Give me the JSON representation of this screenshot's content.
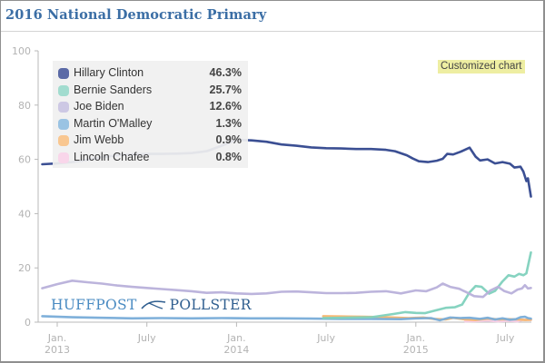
{
  "header": {
    "title": "2016 National Democratic Primary"
  },
  "badge": {
    "label": "Customized chart"
  },
  "branding": {
    "left": "HUFFPOST",
    "right": "POLLSTER",
    "logo_icon": "bird-logo-icon"
  },
  "colors": {
    "title": "#3b6ea5",
    "clinton": "#3b4f93",
    "sanders": "#7fd1bd",
    "biden": "#b8b0da",
    "omalley": "#78acd8",
    "webb": "#f7b56d",
    "chafee": "#f6cde6",
    "axis": "#b8b8b8",
    "badge_bg": "#eeeea2"
  },
  "legend": {
    "items": [
      {
        "name": "Hillary Clinton",
        "value": "46.3%",
        "color": "#5b6aa6"
      },
      {
        "name": "Bernie Sanders",
        "value": "25.7%",
        "color": "#a2dccf"
      },
      {
        "name": "Joe Biden",
        "value": "12.6%",
        "color": "#cdc8e4"
      },
      {
        "name": "Martin O'Malley",
        "value": "1.3%",
        "color": "#9ac3e3"
      },
      {
        "name": "Jim Webb",
        "value": "0.9%",
        "color": "#f9c791"
      },
      {
        "name": "Lincoln Chafee",
        "value": "0.8%",
        "color": "#f9d6ea"
      }
    ]
  },
  "chart_data": {
    "type": "line",
    "title": "2016 National Democratic Primary",
    "xlabel": "",
    "ylabel": "",
    "x_unit": "months since Jan. 2013",
    "xlim": [
      -1.3,
      31.8
    ],
    "ylim": [
      0,
      100
    ],
    "y_ticks": [
      0,
      20,
      40,
      60,
      80,
      100
    ],
    "x_ticks": [
      {
        "x": 0,
        "line1": "Jan.",
        "line2": "2013"
      },
      {
        "x": 6,
        "line1": "July",
        "line2": ""
      },
      {
        "x": 12,
        "line1": "Jan.",
        "line2": "2014"
      },
      {
        "x": 18,
        "line1": "July",
        "line2": ""
      },
      {
        "x": 24,
        "line1": "Jan.",
        "line2": "2015"
      },
      {
        "x": 30,
        "line1": "July",
        "line2": ""
      }
    ],
    "grid": false,
    "legend_position": "top-left",
    "series": [
      {
        "name": "Hillary Clinton",
        "color": "#3b4f93",
        "points": [
          [
            -1,
            58.2
          ],
          [
            0,
            58.5
          ],
          [
            1,
            59
          ],
          [
            2,
            59.8
          ],
          [
            3,
            60.8
          ],
          [
            4,
            61.5
          ],
          [
            5,
            61.8
          ],
          [
            6,
            62
          ],
          [
            7,
            62
          ],
          [
            8,
            62.1
          ],
          [
            9,
            62.3
          ],
          [
            10,
            63
          ],
          [
            11,
            65
          ],
          [
            12,
            67.2
          ],
          [
            13,
            67
          ],
          [
            14,
            66.5
          ],
          [
            15,
            65.5
          ],
          [
            16,
            65
          ],
          [
            17,
            64.4
          ],
          [
            18,
            64.1
          ],
          [
            19,
            64
          ],
          [
            20,
            63.8
          ],
          [
            21,
            63.8
          ],
          [
            22,
            63.5
          ],
          [
            22.6,
            63
          ],
          [
            23.4,
            61.5
          ],
          [
            23.8,
            60.3
          ],
          [
            24.2,
            59.3
          ],
          [
            24.8,
            59
          ],
          [
            25.4,
            59.5
          ],
          [
            25.8,
            60.2
          ],
          [
            26.1,
            62
          ],
          [
            26.5,
            61.8
          ],
          [
            27,
            62.8
          ],
          [
            27.6,
            64.3
          ],
          [
            28,
            61
          ],
          [
            28.3,
            59.6
          ],
          [
            28.8,
            60
          ],
          [
            29.3,
            58.5
          ],
          [
            29.8,
            59
          ],
          [
            30.3,
            58.4
          ],
          [
            30.6,
            57
          ],
          [
            31,
            57.3
          ],
          [
            31.2,
            55.5
          ],
          [
            31.4,
            52
          ],
          [
            31.5,
            53
          ],
          [
            31.7,
            46.3
          ]
        ]
      },
      {
        "name": "Bernie Sanders",
        "color": "#7fd1bd",
        "points": [
          [
            17.8,
            1.5
          ],
          [
            19,
            1.6
          ],
          [
            21,
            1.8
          ],
          [
            22.5,
            3
          ],
          [
            23.3,
            3.7
          ],
          [
            24,
            3.4
          ],
          [
            24.6,
            3.3
          ],
          [
            25.3,
            4.3
          ],
          [
            26,
            5.3
          ],
          [
            26.6,
            5.5
          ],
          [
            27.1,
            6.5
          ],
          [
            27.6,
            11
          ],
          [
            28,
            13.3
          ],
          [
            28.4,
            13
          ],
          [
            28.9,
            10.5
          ],
          [
            29.3,
            11.5
          ],
          [
            29.8,
            15
          ],
          [
            30.2,
            17.3
          ],
          [
            30.6,
            16.8
          ],
          [
            30.9,
            17.8
          ],
          [
            31.2,
            17.3
          ],
          [
            31.4,
            18
          ],
          [
            31.7,
            25.7
          ]
        ]
      },
      {
        "name": "Joe Biden",
        "color": "#b8b0da",
        "points": [
          [
            -1,
            12.5
          ],
          [
            0,
            14
          ],
          [
            1,
            15.3
          ],
          [
            2,
            14.7
          ],
          [
            3,
            14.2
          ],
          [
            4,
            13.5
          ],
          [
            5,
            13
          ],
          [
            6,
            12.6
          ],
          [
            7,
            12.2
          ],
          [
            8,
            11.8
          ],
          [
            9,
            11.4
          ],
          [
            10,
            10.8
          ],
          [
            11,
            11
          ],
          [
            12,
            10.6
          ],
          [
            13,
            10.4
          ],
          [
            14,
            10.6
          ],
          [
            15,
            11.2
          ],
          [
            16,
            11.3
          ],
          [
            17,
            11
          ],
          [
            18,
            10.7
          ],
          [
            19,
            10.7
          ],
          [
            20,
            10.8
          ],
          [
            21,
            11.2
          ],
          [
            22,
            11.4
          ],
          [
            23,
            10.6
          ],
          [
            24,
            11.7
          ],
          [
            24.7,
            11.4
          ],
          [
            25.4,
            12.8
          ],
          [
            25.8,
            14.2
          ],
          [
            26.3,
            13
          ],
          [
            26.9,
            12.3
          ],
          [
            27.4,
            11
          ],
          [
            27.9,
            9.6
          ],
          [
            28.5,
            9.3
          ],
          [
            29,
            11.7
          ],
          [
            29.5,
            13
          ],
          [
            29.9,
            11.5
          ],
          [
            30.4,
            10.6
          ],
          [
            30.8,
            12
          ],
          [
            31.1,
            12.4
          ],
          [
            31.3,
            13.6
          ],
          [
            31.5,
            12.4
          ],
          [
            31.7,
            12.6
          ]
        ]
      },
      {
        "name": "Martin O'Malley",
        "color": "#78acd8",
        "points": [
          [
            -1,
            2.2
          ],
          [
            1,
            1.8
          ],
          [
            3,
            1.6
          ],
          [
            5,
            1.4
          ],
          [
            7,
            1.5
          ],
          [
            9,
            1.4
          ],
          [
            11,
            1.5
          ],
          [
            13,
            1.4
          ],
          [
            15,
            1.4
          ],
          [
            17,
            1.3
          ],
          [
            19,
            1.2
          ],
          [
            21,
            1.2
          ],
          [
            23,
            1.1
          ],
          [
            24,
            1.4
          ],
          [
            25,
            1.5
          ],
          [
            25.6,
            0.7
          ],
          [
            26.3,
            1.7
          ],
          [
            27,
            1.5
          ],
          [
            27.6,
            1.6
          ],
          [
            28.3,
            1.2
          ],
          [
            28.8,
            1.6
          ],
          [
            29.3,
            1.0
          ],
          [
            29.8,
            1.4
          ],
          [
            30.3,
            0.9
          ],
          [
            30.7,
            1.1
          ],
          [
            31,
            1.8
          ],
          [
            31.3,
            2.0
          ],
          [
            31.5,
            1.5
          ],
          [
            31.7,
            1.3
          ]
        ]
      },
      {
        "name": "Jim Webb",
        "color": "#f7b56d",
        "points": [
          [
            17.8,
            2.2
          ],
          [
            19,
            2.1
          ],
          [
            20.5,
            2.0
          ],
          [
            22,
            1.8
          ],
          [
            23.5,
            1.5
          ],
          [
            24.5,
            1.7
          ],
          [
            25.2,
            1.2
          ],
          [
            26,
            1.0
          ],
          [
            26.5,
            1.6
          ],
          [
            27.3,
            1.0
          ],
          [
            28,
            0.8
          ],
          [
            28.8,
            1.3
          ],
          [
            29.6,
            1.0
          ],
          [
            30.2,
            1.1
          ],
          [
            30.8,
            1.0
          ],
          [
            31.3,
            0.8
          ],
          [
            31.7,
            0.9
          ]
        ]
      },
      {
        "name": "Lincoln Chafee",
        "color": "#f6cde6",
        "points": [
          [
            27.3,
            0.3
          ],
          [
            28,
            0.4
          ],
          [
            28.8,
            0.6
          ],
          [
            29.5,
            0.3
          ],
          [
            30.2,
            0.5
          ],
          [
            30.8,
            0.3
          ],
          [
            31.2,
            0.9
          ],
          [
            31.7,
            0.8
          ]
        ]
      }
    ]
  }
}
